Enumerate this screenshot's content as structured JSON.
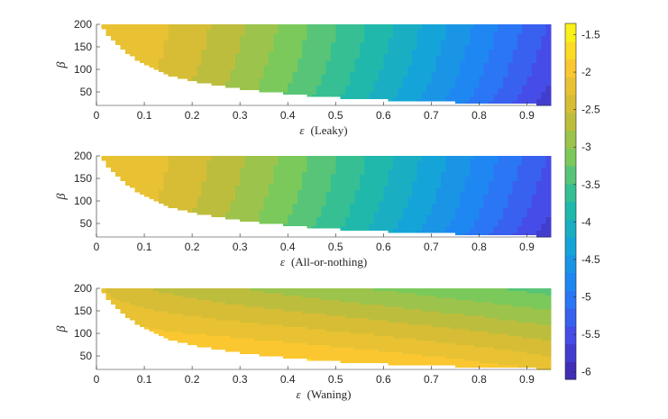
{
  "chart_data": {
    "type": "heatmap",
    "subplots": [
      {
        "id": "leaky",
        "xlabel_symbol": "ε",
        "xlabel_suffix": "(Leaky)",
        "ylabel": "β",
        "xlim": [
          0,
          0.95
        ],
        "ylim": [
          20,
          200
        ],
        "xticks": [
          "0",
          "0.1",
          "0.2",
          "0.3",
          "0.4",
          "0.5",
          "0.6",
          "0.7",
          "0.8",
          "0.9"
        ],
        "xtick_values": [
          0,
          0.1,
          0.2,
          0.3,
          0.4,
          0.5,
          0.6,
          0.7,
          0.8,
          0.9
        ],
        "yticks": [
          "50",
          "100",
          "150",
          "200"
        ],
        "ytick_values": [
          50,
          100,
          150,
          200
        ],
        "boundary": [
          [
            0.005,
            200
          ],
          [
            0.03,
            170
          ],
          [
            0.06,
            140
          ],
          [
            0.1,
            110
          ],
          [
            0.15,
            88
          ],
          [
            0.2,
            75
          ],
          [
            0.3,
            57
          ],
          [
            0.4,
            46
          ],
          [
            0.5,
            38
          ],
          [
            0.6,
            33
          ],
          [
            0.7,
            29
          ],
          [
            0.8,
            26
          ],
          [
            0.9,
            23
          ],
          [
            0.95,
            22
          ]
        ],
        "pattern": "efficacy",
        "value_range": [
          -6.1,
          -2.2
        ]
      },
      {
        "id": "all-or-nothing",
        "xlabel_symbol": "ε",
        "xlabel_suffix": "(All-or-nothing)",
        "ylabel": "β",
        "xlim": [
          0,
          0.95
        ],
        "ylim": [
          20,
          200
        ],
        "xticks": [
          "0",
          "0.1",
          "0.2",
          "0.3",
          "0.4",
          "0.5",
          "0.6",
          "0.7",
          "0.8",
          "0.9"
        ],
        "xtick_values": [
          0,
          0.1,
          0.2,
          0.3,
          0.4,
          0.5,
          0.6,
          0.7,
          0.8,
          0.9
        ],
        "yticks": [
          "50",
          "100",
          "150",
          "200"
        ],
        "ytick_values": [
          50,
          100,
          150,
          200
        ],
        "boundary": [
          [
            0.005,
            200
          ],
          [
            0.03,
            170
          ],
          [
            0.06,
            140
          ],
          [
            0.1,
            110
          ],
          [
            0.15,
            88
          ],
          [
            0.2,
            75
          ],
          [
            0.3,
            57
          ],
          [
            0.4,
            46
          ],
          [
            0.5,
            38
          ],
          [
            0.6,
            33
          ],
          [
            0.7,
            29
          ],
          [
            0.8,
            26
          ],
          [
            0.9,
            23
          ],
          [
            0.95,
            22
          ]
        ],
        "pattern": "efficacy",
        "value_range": [
          -6.1,
          -2.2
        ]
      },
      {
        "id": "waning",
        "xlabel_symbol": "ε",
        "xlabel_suffix": "(Waning)",
        "ylabel": "β",
        "xlim": [
          0,
          0.95
        ],
        "ylim": [
          20,
          200
        ],
        "xticks": [
          "0",
          "0.1",
          "0.2",
          "0.3",
          "0.4",
          "0.5",
          "0.6",
          "0.7",
          "0.8",
          "0.9"
        ],
        "xtick_values": [
          0,
          0.1,
          0.2,
          0.3,
          0.4,
          0.5,
          0.6,
          0.7,
          0.8,
          0.9
        ],
        "yticks": [
          "50",
          "100",
          "150",
          "200"
        ],
        "ytick_values": [
          50,
          100,
          150,
          200
        ],
        "boundary": [
          [
            0.005,
            200
          ],
          [
            0.03,
            170
          ],
          [
            0.06,
            140
          ],
          [
            0.1,
            110
          ],
          [
            0.15,
            88
          ],
          [
            0.2,
            75
          ],
          [
            0.3,
            57
          ],
          [
            0.4,
            46
          ],
          [
            0.5,
            38
          ],
          [
            0.6,
            33
          ],
          [
            0.7,
            29
          ],
          [
            0.8,
            26
          ],
          [
            0.9,
            23
          ],
          [
            0.95,
            22
          ]
        ],
        "pattern": "waning",
        "value_range": [
          -3.3,
          -1.5
        ]
      }
    ],
    "colorbar": {
      "colormap": "parula",
      "range": [
        -6.1,
        -1.35
      ],
      "ticks": [
        "-1.5",
        "-2",
        "-2.5",
        "-3",
        "-3.5",
        "-4",
        "-4.5",
        "-5",
        "-5.5",
        "-6"
      ],
      "tick_values": [
        -1.5,
        -2,
        -2.5,
        -3,
        -3.5,
        -4,
        -4.5,
        -5,
        -5.5,
        -6
      ],
      "levels": 20
    }
  }
}
